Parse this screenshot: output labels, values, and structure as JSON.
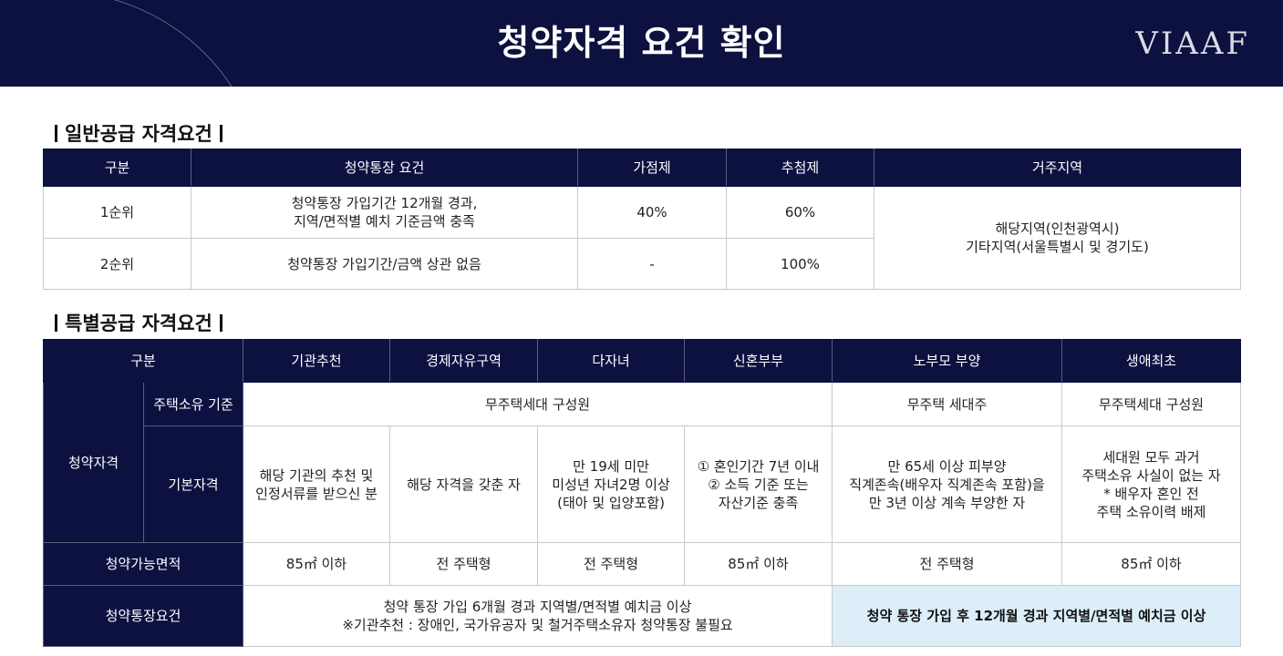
{
  "header": {
    "title": "청약자격 요건 확인",
    "brand": "VIAAF"
  },
  "general": {
    "section_title": "일반공급 자격요건",
    "headers": [
      "구분",
      "청약통장 요건",
      "가점제",
      "추첨제",
      "거주지역"
    ],
    "rows": [
      {
        "rank": "1순위",
        "req_line1": "청약통장 가입기간 12개월 경과,",
        "req_line2": "지역/면적별 예치 기준금액 충족",
        "points": "40%",
        "lottery": "60%"
      },
      {
        "rank": "2순위",
        "req_line1": "청약통장 가입기간/금액 상관 없음",
        "points": "-",
        "lottery": "100%"
      }
    ],
    "region_line1": "해당지역(인천광역시)",
    "region_line2": "기타지역(서울특별시 및 경기도)"
  },
  "special": {
    "section_title": "특별공급 자격요건",
    "headers": [
      "구분",
      "기관추천",
      "경제자유구역",
      "다자녀",
      "신혼부부",
      "노부모 부양",
      "생애최초"
    ],
    "qualification_label": "청약자격",
    "housing_label": "주택소유 기준",
    "housing_values": [
      "무주택세대 구성원",
      "무주택 세대주",
      "무주택세대 구성원"
    ],
    "basic_label": "기본자격",
    "basic": [
      [
        "해당 기관의 추천 및",
        "인정서류를 받으신 분"
      ],
      [
        "해당 자격을 갖춘 자"
      ],
      [
        "만 19세 미만",
        "미성년 자녀2명 이상",
        "(태아 및 입양포함)"
      ],
      [
        "① 혼인기간 7년 이내",
        "② 소득 기준 또는",
        "자산기준 충족"
      ],
      [
        "만 65세 이상 피부양",
        "직계존속(배우자 직계존속 포함)을",
        "만 3년 이상 계속 부양한 자"
      ],
      [
        "세대원 모두 과거",
        "주택소유 사실이 없는 자",
        "* 배우자 혼인 전",
        "주택 소유이력 배제"
      ]
    ],
    "area_label": "청약가능면적",
    "areas": [
      "85㎡ 이하",
      "전 주택형",
      "전 주택형",
      "85㎡ 이하",
      "전 주택형",
      "85㎡ 이하"
    ],
    "account_label": "청약통장요건",
    "account_line1": "청약 통장 가입 6개월 경과 지역별/면적별 예치금 이상",
    "account_line2": "※기관추천 : 장애인, 국가유공자 및 철거주택소유자 청약통장 불필요",
    "account_highlight": "청약 통장 가입 후 12개월 경과 지역별/면적별 예치금 이상"
  },
  "colors": {
    "navy": "#0d1140",
    "highlight": "#ddeef9"
  }
}
